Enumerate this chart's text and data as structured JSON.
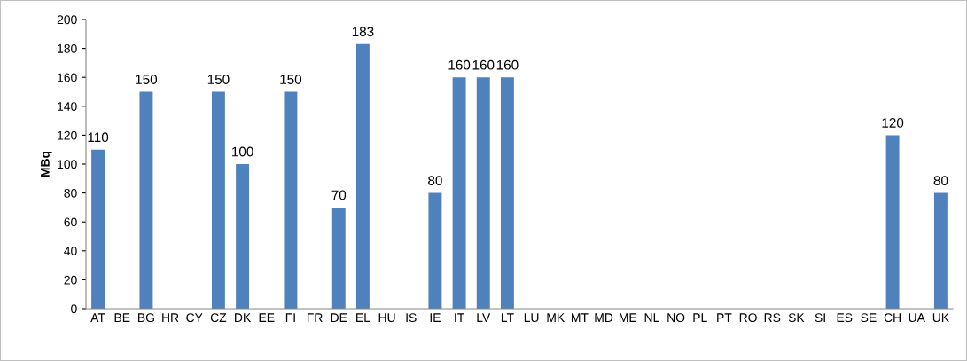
{
  "chart_data": {
    "type": "bar",
    "ylabel": "MBq",
    "categories": [
      "AT",
      "BE",
      "BG",
      "HR",
      "CY",
      "CZ",
      "DK",
      "EE",
      "FI",
      "FR",
      "DE",
      "EL",
      "HU",
      "IS",
      "IE",
      "IT",
      "LV",
      "LT",
      "LU",
      "MK",
      "MT",
      "MD",
      "ME",
      "NL",
      "NO",
      "PL",
      "PT",
      "RO",
      "RS",
      "SK",
      "SI",
      "ES",
      "SE",
      "CH",
      "UA",
      "UK"
    ],
    "values": [
      110,
      null,
      150,
      null,
      null,
      150,
      100,
      null,
      150,
      null,
      70,
      183,
      null,
      null,
      80,
      160,
      160,
      160,
      null,
      null,
      null,
      null,
      null,
      null,
      null,
      null,
      null,
      null,
      null,
      null,
      null,
      null,
      null,
      120,
      null,
      80
    ],
    "color": "#4f81bd",
    "ylim": [
      0,
      200
    ],
    "yticks": [
      0,
      20,
      40,
      60,
      80,
      100,
      120,
      140,
      160,
      180,
      200
    ],
    "grid": false,
    "legend": false,
    "data_labels": true
  }
}
